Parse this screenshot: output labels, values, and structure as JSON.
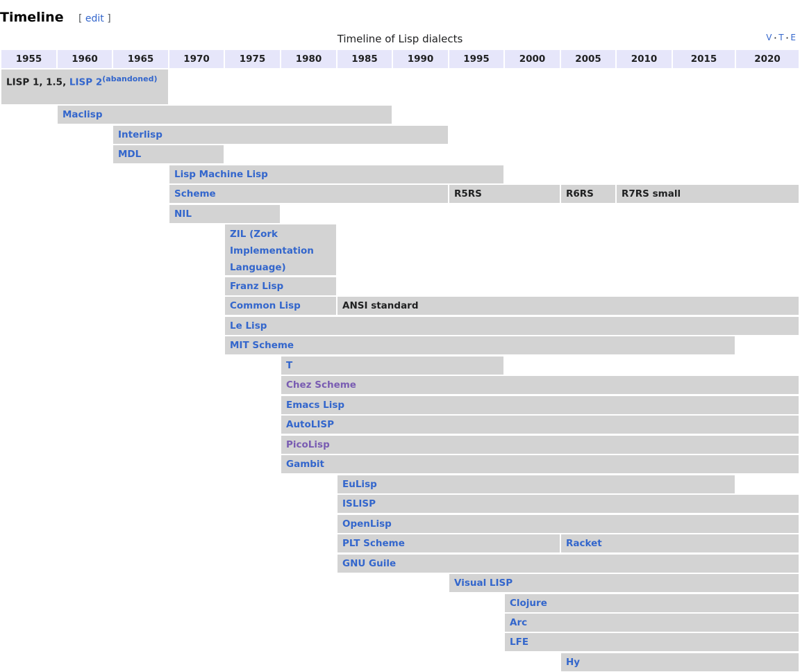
{
  "heading": "Timeline",
  "edit": {
    "open": "[ ",
    "label": "edit",
    "close": " ]"
  },
  "caption": "Timeline of Lisp dialects",
  "navbox": {
    "v": "V",
    "t": "T",
    "e": "E"
  },
  "colors": {
    "header_bg": "#e6e6fa",
    "bar_bg": "#d3d3d3",
    "link": "#3366cc",
    "visited_link": "#795cb2"
  },
  "years": [
    "1955",
    "1960",
    "1965",
    "1970",
    "1975",
    "1980",
    "1985",
    "1990",
    "1995",
    "2000",
    "2005",
    "2010",
    "2015",
    "2020"
  ],
  "rows": [
    [
      {
        "segments": [
          {
            "text": "LISP 1, 1.5, ",
            "style": "plain"
          },
          {
            "text": "LISP 2",
            "style": "link"
          },
          {
            "text": "(abandoned)",
            "style": "link",
            "sup": true
          }
        ],
        "from": "1955",
        "to": "1970"
      }
    ],
    [
      {
        "text": "Maclisp",
        "style": "link",
        "from": "1960",
        "to": "1990"
      }
    ],
    [
      {
        "text": "Interlisp",
        "style": "link",
        "from": "1965",
        "to": "1995"
      }
    ],
    [
      {
        "text": "MDL",
        "style": "link",
        "from": "1965",
        "to": "1975"
      }
    ],
    [
      {
        "text": "Lisp Machine Lisp",
        "style": "link",
        "from": "1970",
        "to": "2000"
      }
    ],
    [
      {
        "text": "Scheme",
        "style": "link",
        "from": "1970",
        "to": "1995"
      },
      {
        "text": "R5RS",
        "style": "plain",
        "from": "1995",
        "to": "2005"
      },
      {
        "text": "R6RS",
        "style": "plain",
        "from": "2005",
        "to": "2010"
      },
      {
        "text": "R7RS small",
        "style": "plain",
        "from": "2010",
        "to": "end"
      }
    ],
    [
      {
        "text": "NIL",
        "style": "link",
        "from": "1970",
        "to": "1980"
      }
    ],
    [
      {
        "text": "ZIL (Zork Implementation Language)",
        "style": "link",
        "from": "1975",
        "to": "1985",
        "tall": true
      }
    ],
    [
      {
        "text": "Franz Lisp",
        "style": "link",
        "from": "1975",
        "to": "1985"
      }
    ],
    [
      {
        "text": "Common Lisp",
        "style": "link",
        "from": "1975",
        "to": "1985"
      },
      {
        "text": "ANSI standard",
        "style": "plain",
        "from": "1985",
        "to": "end"
      }
    ],
    [
      {
        "text": "Le Lisp",
        "style": "link",
        "from": "1975",
        "to": "end"
      }
    ],
    [
      {
        "text": "MIT Scheme",
        "style": "link",
        "from": "1975",
        "to": "2020"
      }
    ],
    [
      {
        "text": "T",
        "style": "link",
        "from": "1980",
        "to": "2000"
      }
    ],
    [
      {
        "text": "Chez Scheme",
        "style": "visited",
        "from": "1980",
        "to": "end"
      }
    ],
    [
      {
        "text": "Emacs Lisp",
        "style": "link",
        "from": "1980",
        "to": "end"
      }
    ],
    [
      {
        "text": "AutoLISP",
        "style": "link",
        "from": "1980",
        "to": "end"
      }
    ],
    [
      {
        "text": "PicoLisp",
        "style": "visited",
        "from": "1980",
        "to": "end"
      }
    ],
    [
      {
        "text": "Gambit",
        "style": "link",
        "from": "1980",
        "to": "end"
      }
    ],
    [
      {
        "text": "EuLisp",
        "style": "link",
        "from": "1985",
        "to": "2020"
      }
    ],
    [
      {
        "text": "ISLISP",
        "style": "link",
        "from": "1985",
        "to": "end"
      }
    ],
    [
      {
        "text": "OpenLisp",
        "style": "link",
        "from": "1985",
        "to": "end"
      }
    ],
    [
      {
        "text": "PLT Scheme",
        "style": "link",
        "from": "1985",
        "to": "2005"
      },
      {
        "text": "Racket",
        "style": "link",
        "from": "2005",
        "to": "end"
      }
    ],
    [
      {
        "text": "GNU Guile",
        "style": "link",
        "from": "1985",
        "to": "end"
      }
    ],
    [
      {
        "text": "Visual LISP",
        "style": "link",
        "from": "1995",
        "to": "end"
      }
    ],
    [
      {
        "text": "Clojure",
        "style": "link",
        "from": "2000",
        "to": "end"
      }
    ],
    [
      {
        "text": "Arc",
        "style": "link",
        "from": "2000",
        "to": "end"
      }
    ],
    [
      {
        "text": "LFE",
        "style": "link",
        "from": "2000",
        "to": "end"
      }
    ],
    [
      {
        "text": "Hy",
        "style": "link",
        "from": "2005",
        "to": "end"
      }
    ]
  ]
}
